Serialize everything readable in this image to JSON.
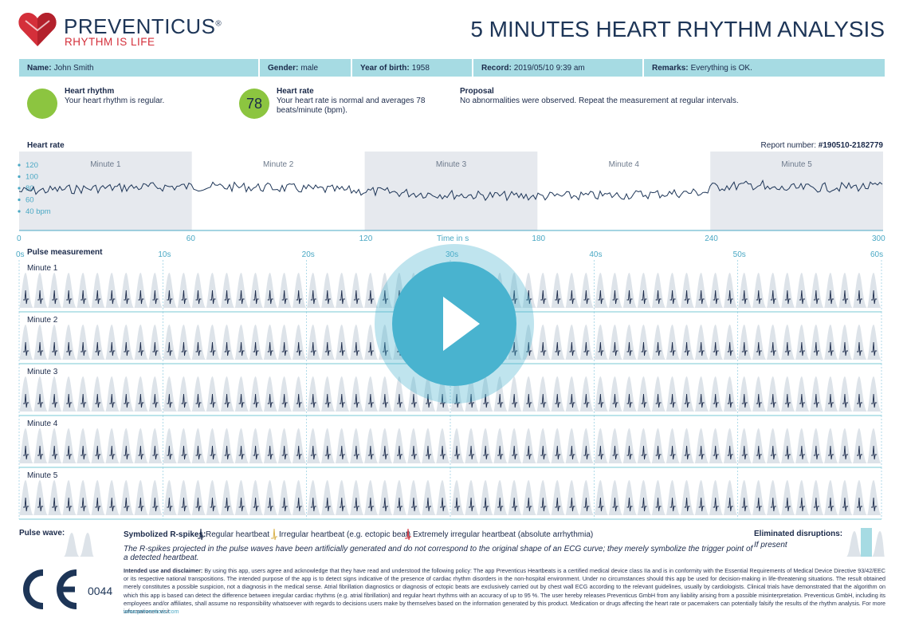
{
  "header": {
    "brand": "PREVENTICUS",
    "registered": "®",
    "tagline": "RHYTHM IS LIFE",
    "title": "5 MINUTES HEART RHYTHM ANALYSIS"
  },
  "patient": {
    "name_label": "Name:",
    "name": "John Smith",
    "gender_label": "Gender:",
    "gender": "male",
    "yob_label": "Year of birth:",
    "yob": "1958",
    "record_label": "Record:",
    "record": "2019/05/10 9:39 am",
    "remarks_label": "Remarks:",
    "remarks": "Everything is OK."
  },
  "summary": {
    "rhythm_title": "Heart rhythm",
    "rhythm_text": "Your heart rhythm is regular.",
    "rate_value": "78",
    "rate_title": "Heart rate",
    "rate_text": "Your heart rate is normal and averages 78 beats/minute (bpm).",
    "proposal_title": "Proposal",
    "proposal_text": "No abnormalities were observed. Repeat the measurement at regular intervals."
  },
  "heart_rate_chart": {
    "title": "Heart rate",
    "report_label": "Report number:",
    "report_number": "#190510-2182779",
    "minute_labels": [
      "Minute 1",
      "Minute 2",
      "Minute 3",
      "Minute 4",
      "Minute 5"
    ],
    "y_ticks": [
      "120",
      "100",
      "80",
      "60",
      "40 bpm"
    ],
    "x_ticks": [
      "0",
      "60",
      "120",
      "180",
      "240",
      "300"
    ],
    "x_label": "Time in s"
  },
  "pulse": {
    "title": "Pulse measurement",
    "time_ticks": [
      "0s",
      "10s",
      "20s",
      "30s",
      "40s",
      "50s",
      "60s"
    ],
    "rows": [
      "Minute 1",
      "Minute 2",
      "Minute 3",
      "Minute 4",
      "Minute 5"
    ]
  },
  "legend": {
    "pulse_wave_label": "Pulse wave:",
    "spikes_label": "Symbolized R-spikes:",
    "regular": "Regular heartbeat",
    "irregular": "Irregular heartbeat (e.g. ectopic beat)",
    "extreme": "Extremely irregular heartbeat (absolute arrhythmia)",
    "note": "The R-spikes projected in the pulse waves have been artificially generated and do not correspond to the original shape of an ECG curve; they merely symbolize the trigger point of a detected heartbeat.",
    "eliminated_label": "Eliminated disruptions:",
    "if_present": "If present",
    "colors": {
      "regular": "#1b2a4a",
      "irregular": "#d9b24c",
      "extreme": "#d42f3a",
      "wave": "#dde3e9"
    }
  },
  "footer": {
    "ce_code": "0044",
    "disclaimer_title": "Intended use and disclaimer:",
    "disclaimer_text": "By using this app, users agree and acknowledge that they have read and understood the following policy: The app Preventicus Heartbeats is a certified medical device class IIa and is in conformity with the Essential Requirements of Medical Device Directive 93/42/EEC or its respective national transpositions. The intended purpose of the app is to detect signs indicative of the presence of cardiac rhythm disorders in the non-hospital environment. Under no circumstances should this app be used for decision-making in life-threatening situations. The result obtained merely constitutes a possible suspicion, not a diagnosis in the medical sense. Atrial fibrillation diagnostics or diagnosis of ectopic beats are exclusively carried out by chest wall ECG according to the relevant guidelines, usually by cardiologists. Clinical trials have demonstrated that the algorithm on which this app is based can detect the difference between irregular cardiac rhythms (e.g. atrial fibrillation) and regular heart rhythms with an accuracy of up to 95 %. The user hereby releases Preventicus GmbH from any liability arising from a possible misinterpretation. Preventicus GmbH, including its employees and/or affiliates, shall assume no responsibility whatsoever with regards to decisions users make by themselves based on the information generated by this product. Medication or drugs affecting the heart rate or pacemakers can potentially falsify the results of the rhythm analysis. For more informationen visit",
    "url": "www.preventicus.com"
  },
  "player": {
    "accent": "#49b3cf",
    "icon": "play-icon"
  }
}
